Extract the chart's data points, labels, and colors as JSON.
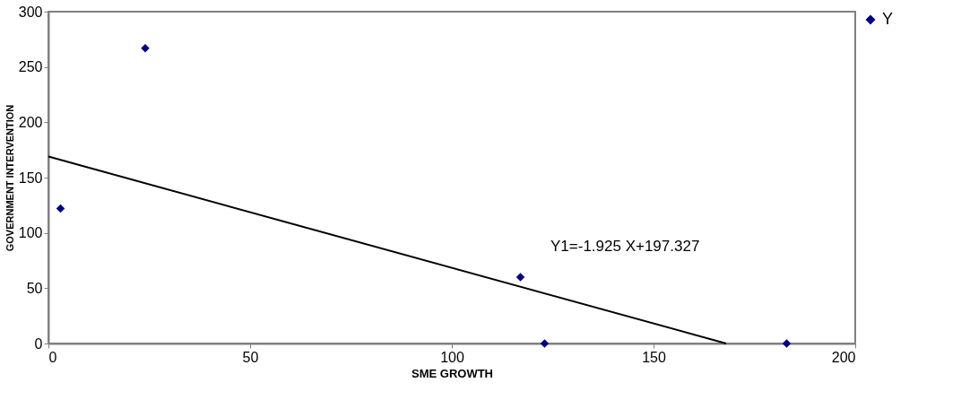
{
  "chart_data": {
    "type": "scatter",
    "xlabel": "SME GROWTH",
    "ylabel": "GOVERNMENT INTERVENTION",
    "xlim": [
      0,
      200
    ],
    "xticks": [
      0,
      50,
      100,
      150,
      200
    ],
    "ylim": [
      0,
      300
    ],
    "yticks": [
      0,
      50,
      100,
      150,
      200,
      250,
      300
    ],
    "grid": false,
    "legend": "right",
    "marker": "diamond",
    "series": [
      {
        "name": "Y",
        "color": "#000080",
        "x": [
          3,
          24,
          117,
          123,
          183
        ],
        "values": [
          122,
          267,
          60,
          0,
          0
        ]
      },
      {
        "type": "line",
        "color": "#000000",
        "marker": "none",
        "x": [
          0,
          168
        ],
        "values": [
          169,
          0
        ],
        "line_style": "solid"
      }
    ],
    "annotations": [
      "Y1=-1.925 X+197.327"
    ]
  }
}
